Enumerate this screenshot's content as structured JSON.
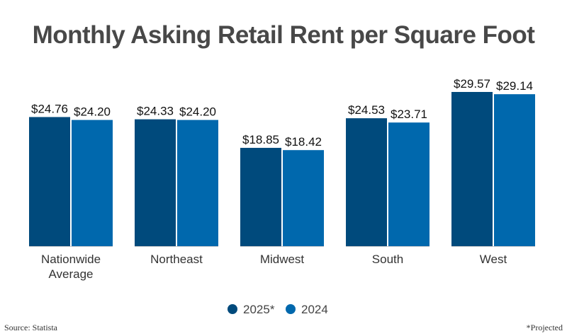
{
  "chart_data": {
    "type": "bar",
    "title": "Monthly Asking Retail Rent per Square Foot",
    "categories": [
      "Nationwide Average",
      "Northeast",
      "Midwest",
      "South",
      "West"
    ],
    "series": [
      {
        "name": "2025*",
        "color": "#004a7c",
        "values": [
          24.76,
          24.33,
          18.85,
          24.53,
          29.57
        ],
        "labels": [
          "$24.76",
          "$24.33",
          "$18.85",
          "$24.53",
          "$29.57"
        ]
      },
      {
        "name": "2024",
        "color": "#0068ad",
        "values": [
          24.2,
          24.2,
          18.42,
          23.71,
          29.14
        ],
        "labels": [
          "$24.20",
          "$24.20",
          "$18.42",
          "$23.71",
          "$29.14"
        ]
      }
    ],
    "ylim": [
      0,
      30
    ],
    "grid": false,
    "legend_position": "bottom",
    "xlabel": "",
    "ylabel": ""
  },
  "footer": {
    "source": "Source: Statista",
    "note": "*Projected"
  }
}
